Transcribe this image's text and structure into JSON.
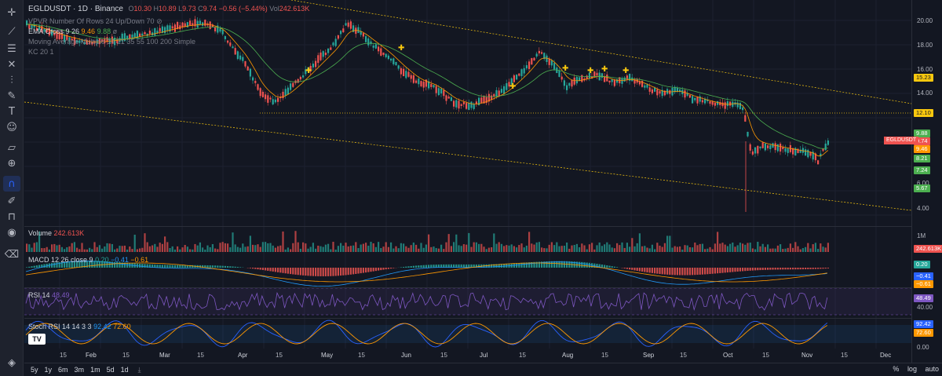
{
  "symbol": {
    "title": "EGLDUSDT · 1D · Binance",
    "ohlc": {
      "o_label": "O",
      "o": "10.30",
      "h_label": "H",
      "h": "10.89",
      "l_label": "L",
      "l": "9.73",
      "c_label": "C",
      "c": "9.74",
      "change": "−0.56 (−5.44%)",
      "vol_label": "Vol",
      "vol": "242.613K"
    }
  },
  "indicators": {
    "vpvr": "VPVR Number Of Rows 24 Up/Down 70",
    "ema_label": "EMA Cross 9 26",
    "ema_a": "9.46",
    "ema_b": "9.88",
    "ema_suffix": "ø",
    "mam": "Moving Average Multiple  14 21 35 55 100 200 Simple",
    "kc": "KC 20 1",
    "volume_label": "Volume",
    "volume_value": "242.613K",
    "macd_label": "MACD 12 26 close 9",
    "macd_a": "0.20",
    "macd_b": "−0.41",
    "macd_c": "−0.61",
    "rsi_label": "RSI 14",
    "rsi_value": "48.49",
    "stoch_label": "Stoch RSI 14 14 3 3",
    "stoch_k": "92.42",
    "stoch_d": "72.60"
  },
  "price_axis": {
    "ticks": [
      "20.00",
      "18.00",
      "16.00",
      "14.00",
      "6.00",
      "4.00"
    ],
    "badges": [
      {
        "label": "15.23",
        "color": "#f9c80e",
        "text_color": "#131722"
      },
      {
        "label": "12.10",
        "color": "#f9c80e",
        "text_color": "#131722"
      },
      {
        "label": "9.88",
        "color": "#4caf50",
        "text_color": "#ffffff"
      },
      {
        "label": "9.74",
        "color": "#ef5350",
        "text_color": "#ffffff"
      },
      {
        "label": "9.46",
        "color": "#ff9800",
        "text_color": "#ffffff"
      },
      {
        "label": "8.21",
        "color": "#4caf50",
        "text_color": "#ffffff"
      },
      {
        "label": "7.24",
        "color": "#4caf50",
        "text_color": "#ffffff"
      },
      {
        "label": "5.67",
        "color": "#4caf50",
        "text_color": "#ffffff"
      }
    ],
    "symbol_tag": "EGLDUSDT",
    "volume_ticks": [
      "1M"
    ],
    "volume_badge": "242.613K",
    "macd_badges": [
      {
        "label": "0.20",
        "color": "#26a69a"
      },
      {
        "label": "−0.41",
        "color": "#2962ff"
      },
      {
        "label": "−0.61",
        "color": "#ff9800"
      }
    ],
    "rsi_badge": "48.49",
    "rsi_tick": "40.00",
    "stoch_badges": [
      {
        "label": "92.42",
        "color": "#2962ff"
      },
      {
        "label": "72.60",
        "color": "#ff9800"
      }
    ],
    "stoch_tick": "0.00"
  },
  "time_axis": [
    {
      "label": "15",
      "month": false
    },
    {
      "label": "Feb",
      "month": true
    },
    {
      "label": "15",
      "month": false
    },
    {
      "label": "Mar",
      "month": true
    },
    {
      "label": "15",
      "month": false
    },
    {
      "label": "Apr",
      "month": true
    },
    {
      "label": "15",
      "month": false
    },
    {
      "label": "May",
      "month": true
    },
    {
      "label": "15",
      "month": false
    },
    {
      "label": "Jun",
      "month": true
    },
    {
      "label": "15",
      "month": false
    },
    {
      "label": "Jul",
      "month": true
    },
    {
      "label": "15",
      "month": false
    },
    {
      "label": "Aug",
      "month": true
    },
    {
      "label": "15",
      "month": false
    },
    {
      "label": "Sep",
      "month": true
    },
    {
      "label": "15",
      "month": false
    },
    {
      "label": "Oct",
      "month": true
    },
    {
      "label": "15",
      "month": false
    },
    {
      "label": "Nov",
      "month": true
    },
    {
      "label": "15",
      "month": false
    },
    {
      "label": "Dec",
      "month": true
    }
  ],
  "ranges": [
    "5y",
    "1y",
    "6m",
    "3m",
    "1m",
    "5d",
    "1d"
  ],
  "right_controls": {
    "percent": "%",
    "log": "log",
    "auto": "auto"
  },
  "toolbar_icons": [
    "crosshair-icon",
    "trend-line-icon",
    "fib-icon",
    "pattern-icon",
    "prediction-icon",
    "brush-icon",
    "text-icon",
    "emoji-icon",
    "ruler-icon",
    "zoom-icon",
    "magnet-icon",
    "lock-drawing-icon",
    "lock-icon",
    "eye-icon",
    "trash-icon"
  ],
  "colors": {
    "up": "#26a69a",
    "down": "#ef5350",
    "ema_fast": "#ff9800",
    "ema_slow": "#4caf50",
    "channel": "#f9c80e",
    "rsi": "#7e57c2",
    "stoch_k": "#2962ff",
    "stoch_d": "#ff9800"
  }
}
